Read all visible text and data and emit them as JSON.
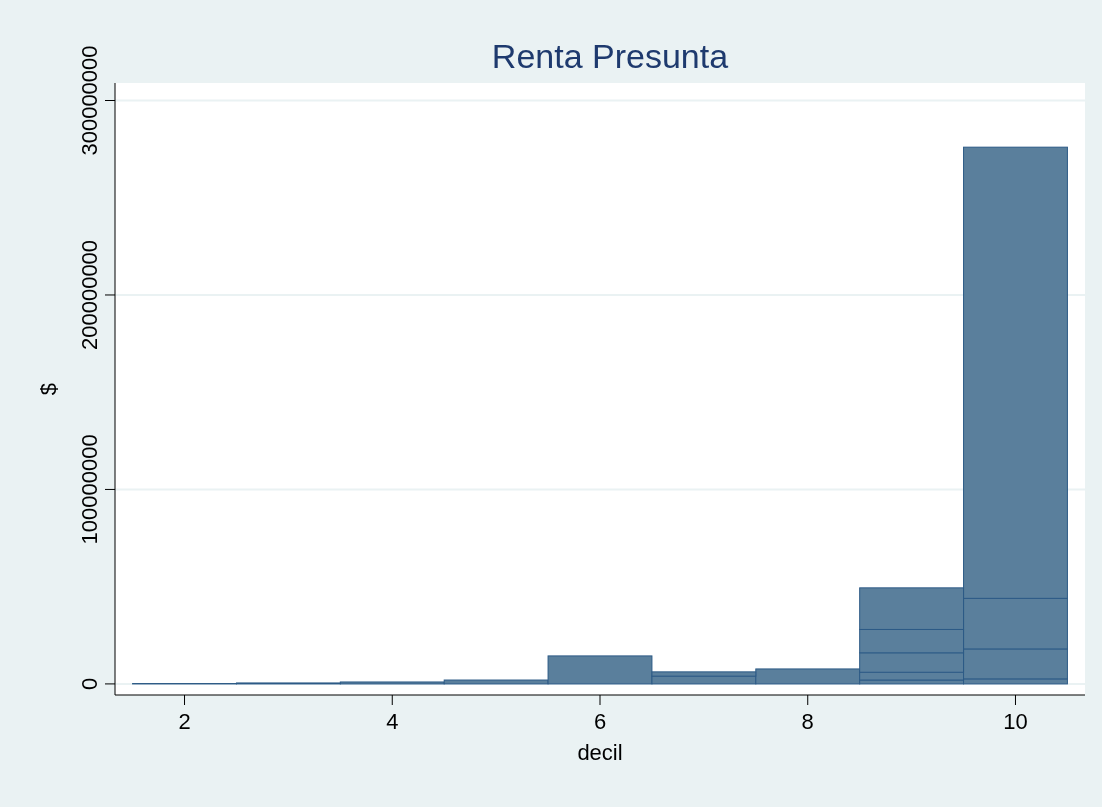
{
  "chart_data": {
    "type": "bar",
    "stacked": true,
    "title": "Renta Presunta",
    "xlabel": "decil",
    "ylabel": "$",
    "x": [
      2,
      3,
      4,
      5,
      6,
      7,
      8,
      9,
      10
    ],
    "series": [
      {
        "color": "#5a7f9c",
        "values": [
          200000,
          500000,
          1000000,
          2000000,
          14400000,
          4000000,
          7700000,
          2000000,
          2600000
        ]
      },
      {
        "color": "#5a7f9c",
        "values": [
          null,
          null,
          null,
          null,
          null,
          2200000,
          null,
          4000000,
          15400000
        ]
      },
      {
        "color": "#5a7f9c",
        "values": [
          null,
          null,
          null,
          null,
          null,
          null,
          null,
          10000000,
          26000000
        ]
      },
      {
        "color": "#5a7f9c",
        "values": [
          null,
          null,
          null,
          null,
          null,
          null,
          null,
          12000000,
          232000000
        ]
      },
      {
        "color": "#5a7f9c",
        "values": [
          null,
          null,
          null,
          null,
          null,
          null,
          null,
          21400000,
          null
        ]
      }
    ],
    "xlim": [
      1.35,
      10.65
    ],
    "xticks": [
      2,
      4,
      6,
      8,
      10
    ],
    "ylim": [
      -5700000,
      309000000
    ],
    "yticks": [
      0,
      100000000,
      200000000,
      300000000
    ],
    "grid": "y"
  }
}
